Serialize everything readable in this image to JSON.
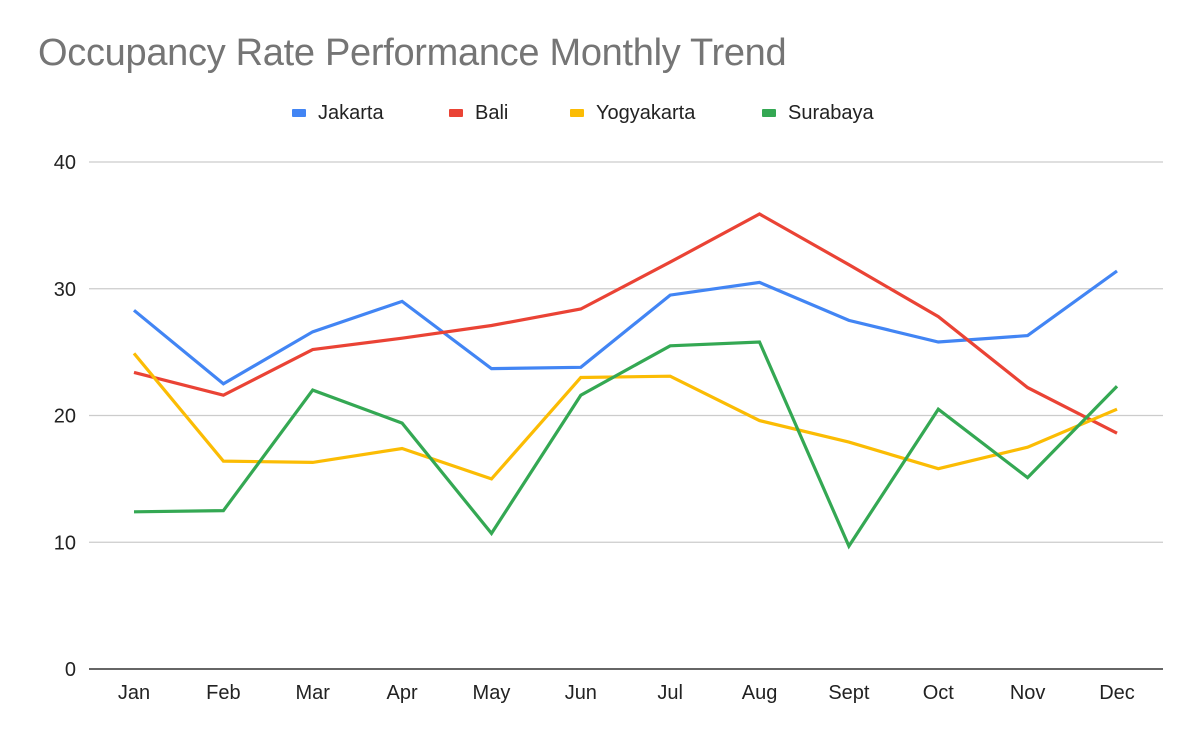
{
  "chart_data": {
    "type": "line",
    "title": "Occupancy Rate Performance Monthly Trend",
    "xlabel": "",
    "ylabel": "",
    "categories": [
      "Jan",
      "Feb",
      "Mar",
      "Apr",
      "May",
      "Jun",
      "Jul",
      "Aug",
      "Sept",
      "Oct",
      "Nov",
      "Dec"
    ],
    "ylim": [
      0,
      40
    ],
    "yticks": [
      0,
      10,
      20,
      30,
      40
    ],
    "grid": true,
    "legend_position": "top",
    "series": [
      {
        "name": "Jakarta",
        "color": "#4285F4",
        "values": [
          28.3,
          22.5,
          26.6,
          29.0,
          23.7,
          23.8,
          29.5,
          30.5,
          27.5,
          25.8,
          26.3,
          31.4
        ]
      },
      {
        "name": "Bali",
        "color": "#EA4335",
        "values": [
          23.4,
          21.6,
          25.2,
          26.1,
          27.1,
          28.4,
          32.1,
          35.9,
          31.9,
          27.8,
          22.2,
          18.6
        ]
      },
      {
        "name": "Yogyakarta",
        "color": "#FBBC04",
        "values": [
          24.9,
          16.4,
          16.3,
          17.4,
          15.0,
          23.0,
          23.1,
          19.6,
          17.9,
          15.8,
          17.5,
          20.5
        ]
      },
      {
        "name": "Surabaya",
        "color": "#34A853",
        "values": [
          12.4,
          12.5,
          22.0,
          19.4,
          10.7,
          21.6,
          25.5,
          25.8,
          9.7,
          20.5,
          15.1,
          22.3
        ]
      }
    ]
  }
}
